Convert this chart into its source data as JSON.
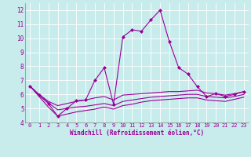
{
  "title": "",
  "xlabel": "Windchill (Refroidissement éolien,°C)",
  "ylabel": "",
  "xlim": [
    -0.5,
    23.5
  ],
  "ylim": [
    4,
    12.5
  ],
  "xticks": [
    0,
    1,
    2,
    3,
    4,
    5,
    6,
    7,
    8,
    9,
    10,
    11,
    12,
    13,
    14,
    15,
    16,
    17,
    18,
    19,
    20,
    21,
    22,
    23
  ],
  "yticks": [
    4,
    5,
    6,
    7,
    8,
    9,
    10,
    11,
    12
  ],
  "bg_color": "#c8ecec",
  "line_color": "#990099",
  "grid_color": "#ffffff",
  "lines": [
    {
      "x": [
        0,
        1,
        2,
        3,
        4,
        5,
        6,
        7,
        8,
        9,
        10,
        11,
        12,
        13,
        14,
        15,
        16,
        17,
        18,
        19,
        20,
        21,
        22,
        23
      ],
      "y": [
        6.6,
        5.95,
        5.35,
        4.45,
        5.0,
        5.55,
        5.6,
        7.0,
        7.9,
        5.3,
        10.1,
        10.6,
        10.5,
        11.3,
        12.0,
        9.75,
        7.9,
        7.45,
        6.55,
        5.85,
        6.05,
        5.85,
        6.0,
        6.2
      ],
      "marker": "D",
      "markersize": 2.0,
      "linewidth": 0.8
    },
    {
      "x": [
        0,
        1,
        2,
        3,
        4,
        5,
        6,
        7,
        8,
        9,
        10,
        11,
        12,
        13,
        14,
        15,
        16,
        17,
        18,
        19,
        20,
        21,
        22,
        23
      ],
      "y": [
        6.6,
        6.0,
        5.5,
        5.2,
        5.35,
        5.5,
        5.6,
        5.75,
        5.85,
        5.6,
        5.95,
        6.0,
        6.05,
        6.1,
        6.15,
        6.2,
        6.2,
        6.25,
        6.3,
        6.1,
        6.05,
        5.95,
        6.05,
        6.2
      ],
      "marker": null,
      "markersize": 0,
      "linewidth": 0.8
    },
    {
      "x": [
        0,
        1,
        2,
        3,
        4,
        5,
        6,
        7,
        8,
        9,
        10,
        11,
        12,
        13,
        14,
        15,
        16,
        17,
        18,
        19,
        20,
        21,
        22,
        23
      ],
      "y": [
        6.6,
        5.95,
        5.4,
        4.9,
        5.0,
        5.1,
        5.15,
        5.25,
        5.35,
        5.2,
        5.5,
        5.6,
        5.7,
        5.8,
        5.85,
        5.9,
        5.95,
        6.0,
        6.0,
        5.85,
        5.8,
        5.75,
        5.85,
        6.0
      ],
      "marker": null,
      "markersize": 0,
      "linewidth": 0.8
    },
    {
      "x": [
        0,
        1,
        2,
        3,
        4,
        5,
        6,
        7,
        8,
        9,
        10,
        11,
        12,
        13,
        14,
        15,
        16,
        17,
        18,
        19,
        20,
        21,
        22,
        23
      ],
      "y": [
        6.6,
        5.85,
        5.1,
        4.45,
        4.6,
        4.75,
        4.85,
        4.95,
        5.1,
        4.95,
        5.2,
        5.3,
        5.45,
        5.55,
        5.6,
        5.65,
        5.7,
        5.75,
        5.75,
        5.6,
        5.55,
        5.5,
        5.65,
        5.8
      ],
      "marker": null,
      "markersize": 0,
      "linewidth": 0.8
    }
  ],
  "tick_fontsize": 5.0,
  "xlabel_fontsize": 5.5,
  "tick_color": "#990099",
  "spine_color": "#888888"
}
